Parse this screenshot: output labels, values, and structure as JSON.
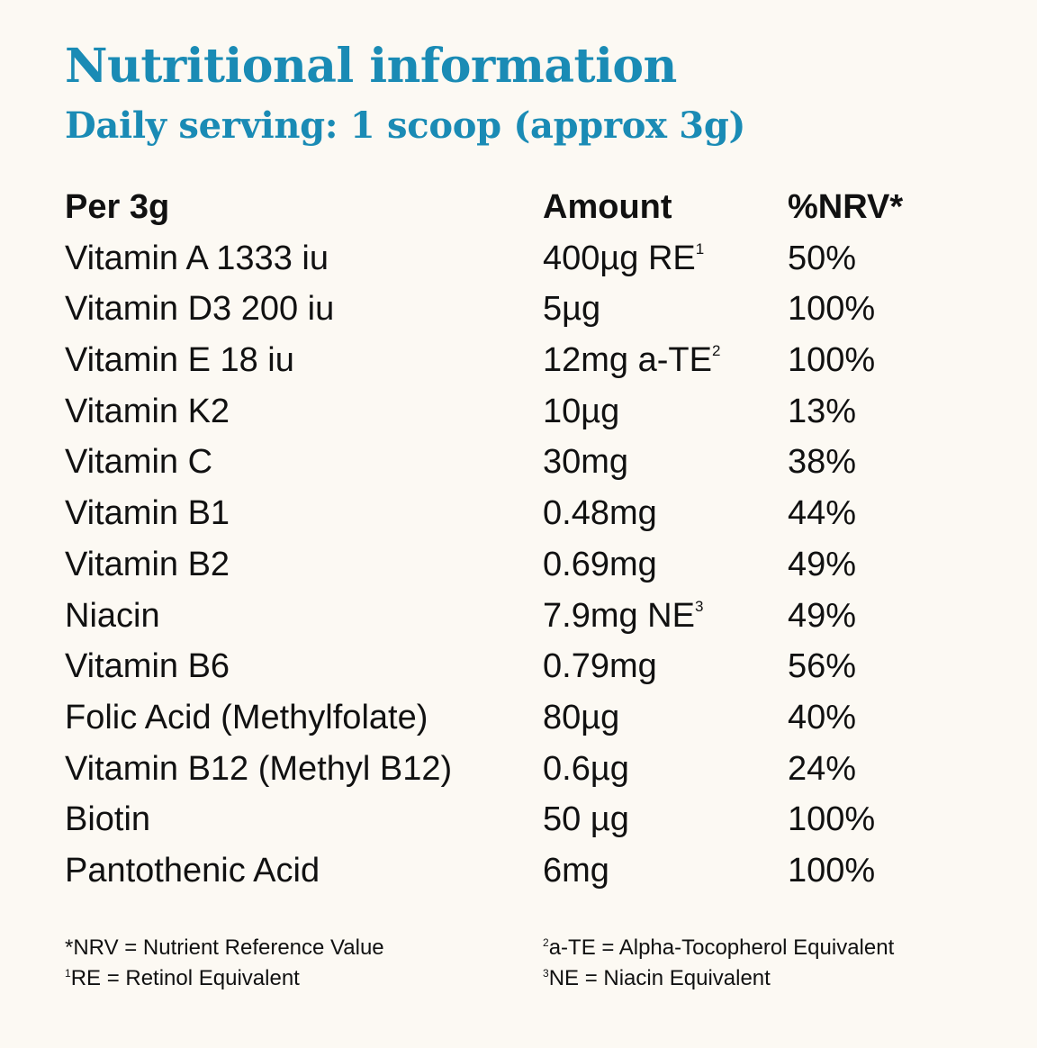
{
  "title": "Nutritional information",
  "subtitle": "Daily serving: 1 scoop (approx 3g)",
  "table": {
    "headers": {
      "nutrient": "Per 3g",
      "amount": "Amount",
      "nrv": "%NRV*"
    },
    "rows": [
      {
        "nutrient": "Vitamin A 1333 iu",
        "amount": "400µg RE",
        "amount_sup": "1",
        "nrv": "50%"
      },
      {
        "nutrient": "Vitamin D3 200 iu",
        "amount": "5µg",
        "amount_sup": "",
        "nrv": "100%"
      },
      {
        "nutrient": "Vitamin E 18 iu",
        "amount": "12mg a-TE",
        "amount_sup": "2",
        "nrv": "100%"
      },
      {
        "nutrient": "Vitamin K2",
        "amount": "10µg",
        "amount_sup": "",
        "nrv": "13%"
      },
      {
        "nutrient": "Vitamin C",
        "amount": "30mg",
        "amount_sup": "",
        "nrv": "38%"
      },
      {
        "nutrient": "Vitamin B1",
        "amount": "0.48mg",
        "amount_sup": "",
        "nrv": "44%"
      },
      {
        "nutrient": "Vitamin B2",
        "amount": "0.69mg",
        "amount_sup": "",
        "nrv": "49%"
      },
      {
        "nutrient": "Niacin",
        "amount": "7.9mg NE",
        "amount_sup": "3",
        "nrv": "49%"
      },
      {
        "nutrient": "Vitamin B6",
        "amount": "0.79mg",
        "amount_sup": "",
        "nrv": "56%"
      },
      {
        "nutrient": "Folic Acid (Methylfolate)",
        "amount": "80µg",
        "amount_sup": "",
        "nrv": "40%"
      },
      {
        "nutrient": "Vitamin B12 (Methyl B12)",
        "amount": "0.6µg",
        "amount_sup": "",
        "nrv": "24%"
      },
      {
        "nutrient": "Biotin",
        "amount": "50 µg",
        "amount_sup": "",
        "nrv": "100%"
      },
      {
        "nutrient": "Pantothenic Acid",
        "amount": "6mg",
        "amount_sup": "",
        "nrv": "100%"
      }
    ]
  },
  "footnotes": {
    "nrv": {
      "sup": "",
      "text": "*NRV = Nutrient Reference Value"
    },
    "re": {
      "sup": "1",
      "text": "RE = Retinol Equivalent"
    },
    "ate": {
      "sup": "2",
      "text": "a-TE = Alpha-Tocopherol Equivalent"
    },
    "ne": {
      "sup": "3",
      "text": "NE = Niacin Equivalent"
    }
  },
  "colors": {
    "heading": "#1a8bb5",
    "background": "#fcf9f3",
    "text": "#111111"
  }
}
